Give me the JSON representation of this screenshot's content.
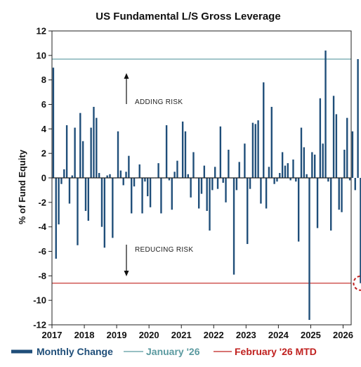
{
  "chart_data": {
    "type": "bar",
    "title": "US Fundamental L/S Gross Leverage",
    "ylabel": "% of Fund Equity",
    "xlabel": "",
    "ylim": [
      -12,
      12
    ],
    "yticks": [
      -12,
      -10,
      -8,
      -6,
      -4,
      -2,
      0,
      2,
      4,
      6,
      8,
      10,
      12
    ],
    "xlim": [
      2017,
      2026.25
    ],
    "xticks": [
      "2017",
      "2018",
      "2019",
      "2020",
      "2021",
      "2022",
      "2023",
      "2024",
      "2025",
      "2026"
    ],
    "grid": false,
    "legend_position": "bottom",
    "series": [
      {
        "name": "Monthly Change",
        "color": "#1f4e79",
        "values": [
          9.0,
          -6.6,
          -3.8,
          -0.5,
          0.7,
          4.3,
          -2.1,
          0.2,
          4.1,
          -5.5,
          5.3,
          3.0,
          -2.7,
          -3.5,
          4.1,
          5.8,
          4.9,
          0.4,
          -4.0,
          -5.7,
          0.2,
          0.3,
          -4.9,
          0.0,
          3.8,
          0.6,
          -0.6,
          0.5,
          1.8,
          -2.9,
          -0.7,
          0.0,
          1.1,
          -2.9,
          -0.3,
          -1.5,
          -2.4,
          0.0,
          0.0,
          1.2,
          -2.9,
          0.0,
          4.3,
          -0.2,
          -2.6,
          0.5,
          1.4,
          0.0,
          4.6,
          3.8,
          0.3,
          -1.6,
          2.1,
          0.0,
          -2.5,
          -1.3,
          1.0,
          -2.7,
          -4.3,
          -1.0,
          0.9,
          -0.9,
          4.2,
          -0.4,
          -2.0,
          2.3,
          0.0,
          -7.9,
          -1.0,
          1.3,
          0.0,
          2.8,
          -5.4,
          -0.9,
          4.5,
          4.4,
          4.7,
          -2.1,
          7.8,
          -2.5,
          0.9,
          5.8,
          -0.5,
          -0.3,
          0.4,
          2.1,
          1.0,
          1.2,
          -0.2,
          1.5,
          -0.3,
          -5.2,
          4.1,
          2.5,
          0.3,
          -11.6,
          2.1,
          1.9,
          -4.1,
          6.5,
          2.8,
          10.4,
          -0.3,
          -4.3,
          6.7,
          5.2,
          -2.6,
          -2.8,
          2.3,
          4.9,
          -0.2,
          3.8,
          -1.0,
          9.7,
          -8.6
        ]
      }
    ],
    "reference_lines": [
      {
        "name": "January '26",
        "value": 9.7,
        "color": "#5b9aa0"
      },
      {
        "name": "February '26 MTD",
        "value": -8.6,
        "color": "#c0211f"
      }
    ],
    "annotations": {
      "adding_risk": "ADDING RISK",
      "reducing_risk": "REDUCING RISK"
    },
    "highlight_color": "#c0211f"
  },
  "legend": {
    "monthly_change": "Monthly Change",
    "january": "January '26",
    "february": "February '26 MTD"
  }
}
